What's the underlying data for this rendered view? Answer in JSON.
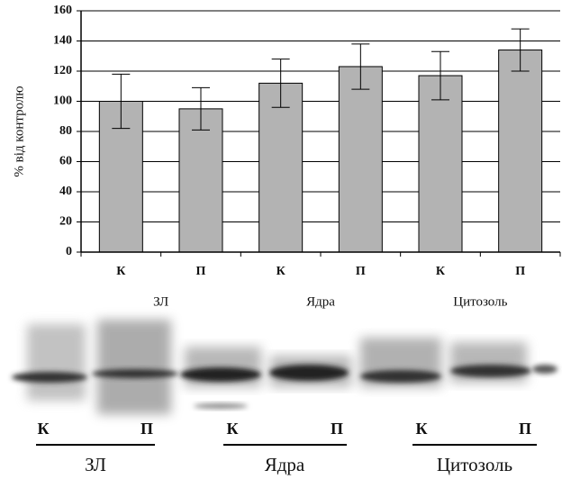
{
  "chart_data": {
    "type": "bar",
    "y_label": "% від контролю",
    "categories": [
      "К",
      "П",
      "К",
      "П",
      "К",
      "П"
    ],
    "group_labels": [
      "ЗЛ",
      "Ядра",
      "Цитозоль"
    ],
    "values": [
      100,
      95,
      112,
      123,
      117,
      134
    ],
    "errors": [
      18,
      14,
      16,
      15,
      16,
      14
    ],
    "color": "#b3b3b3",
    "ylim": [
      0,
      160
    ],
    "yticks": [
      0,
      20,
      40,
      60,
      80,
      100,
      120,
      140,
      160
    ],
    "grid": true
  },
  "blot": {
    "lanes": [
      "К",
      "П",
      "К",
      "П",
      "К",
      "П"
    ],
    "groups": [
      "ЗЛ",
      "Ядра",
      "Цитозоль"
    ]
  }
}
